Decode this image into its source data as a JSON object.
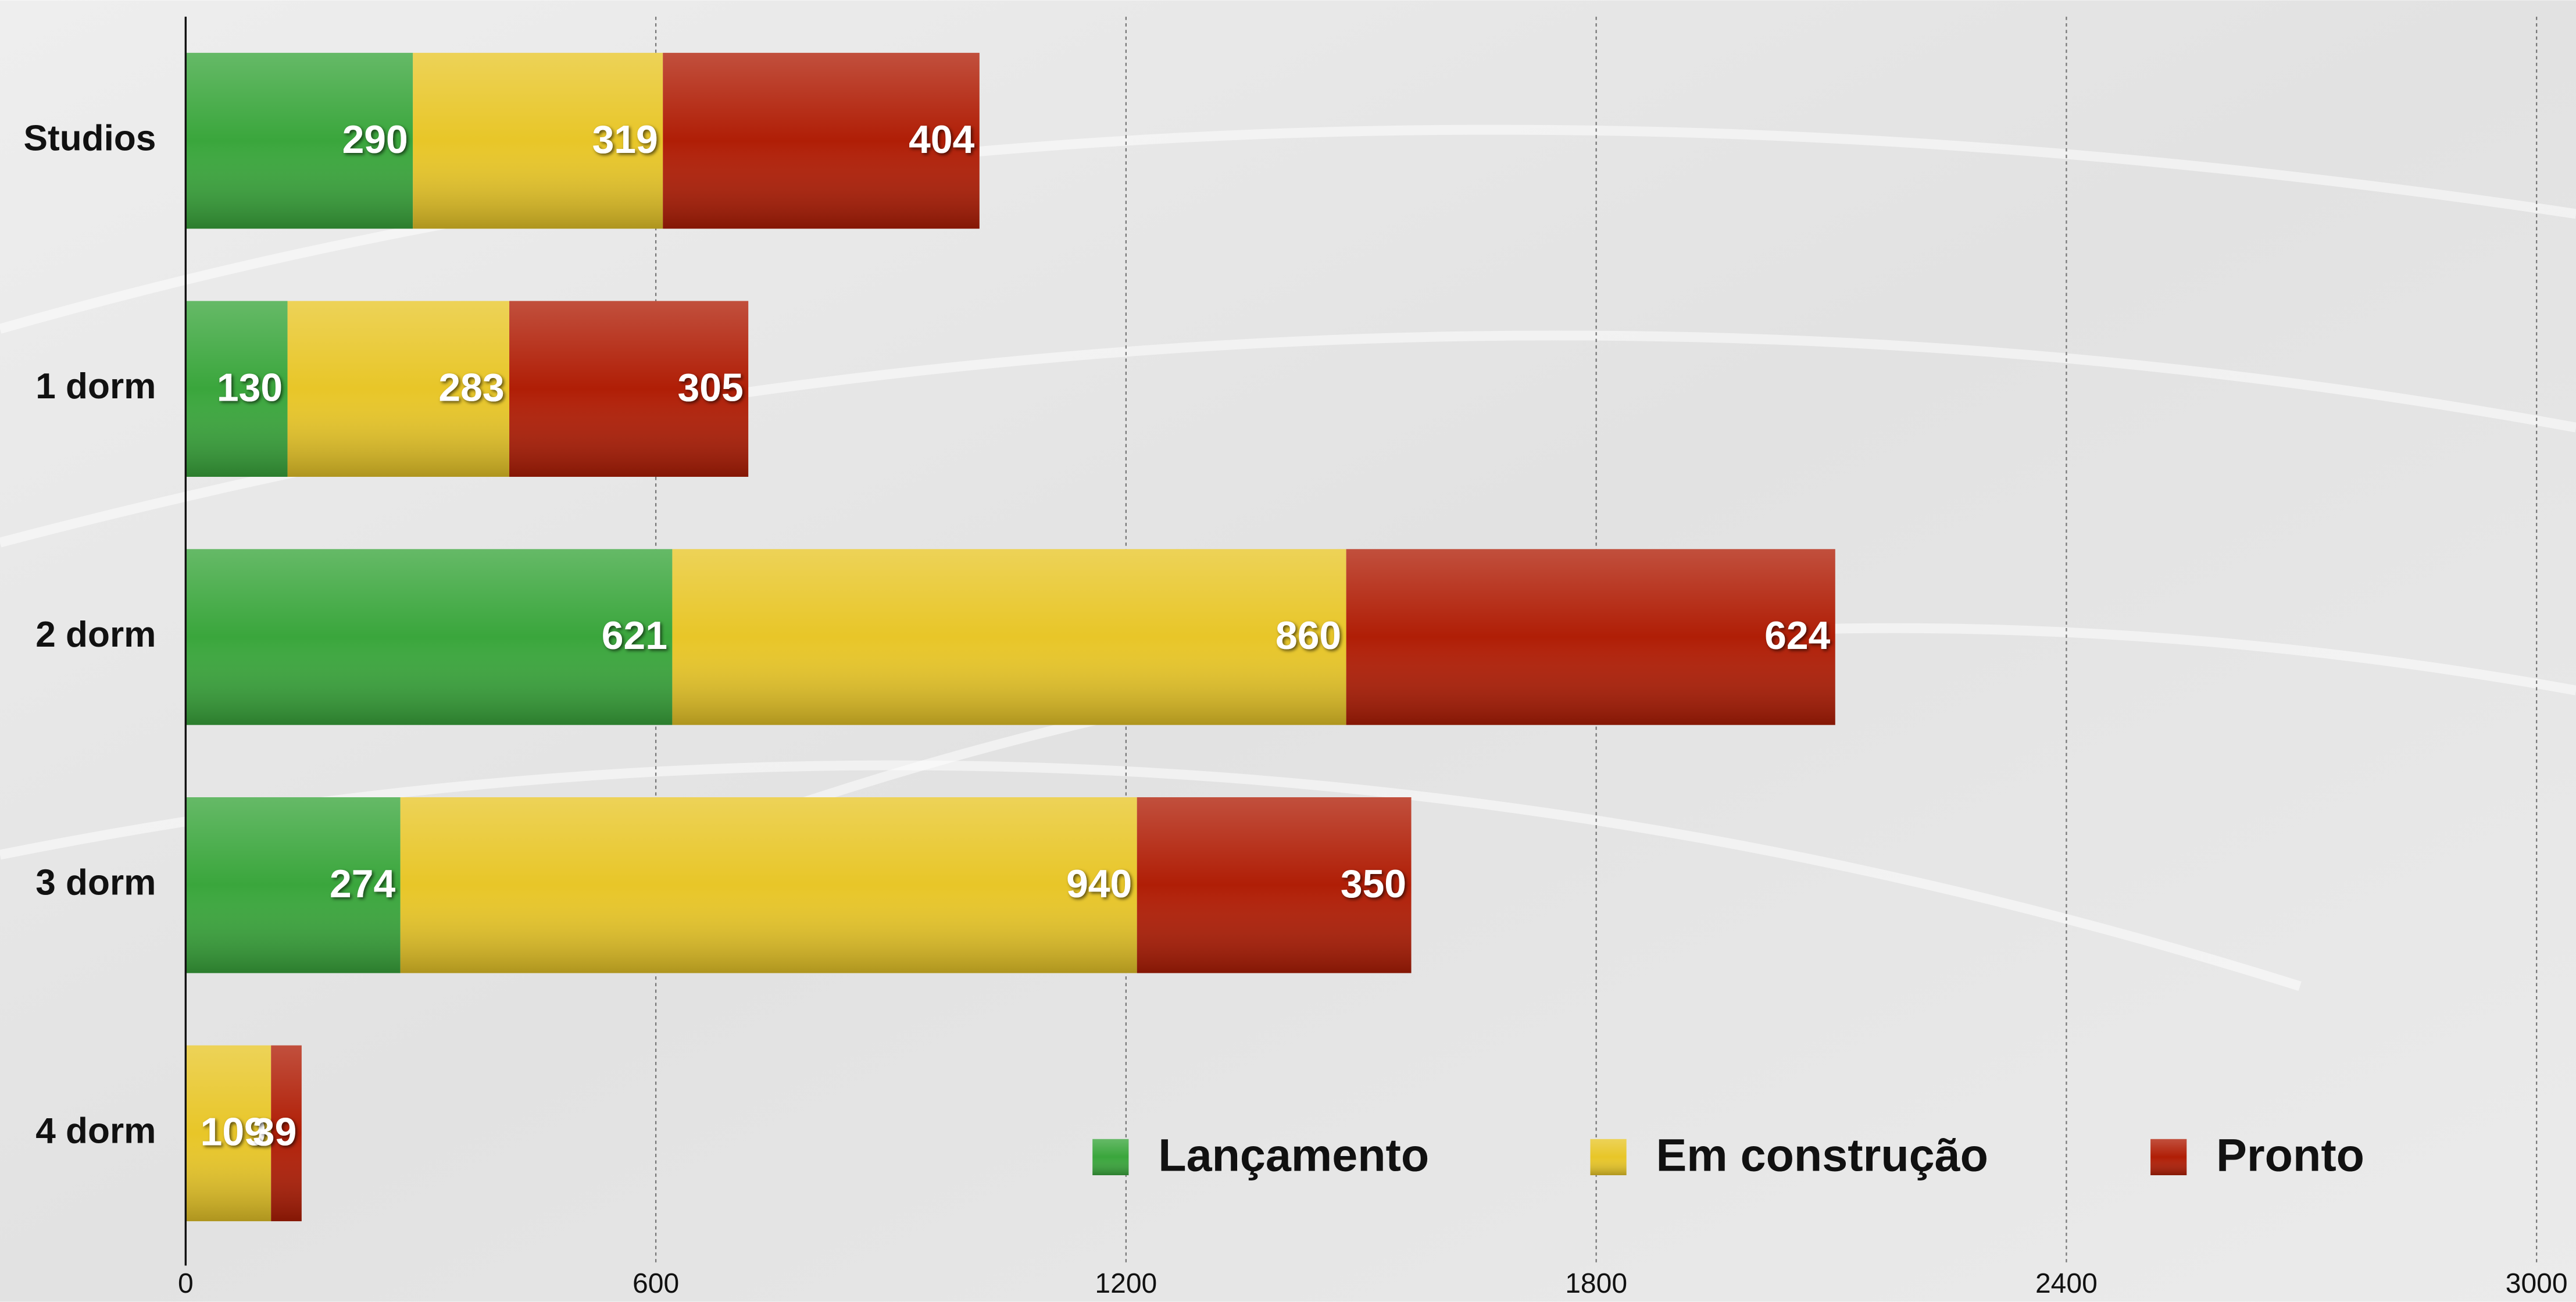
{
  "chart_data": {
    "type": "stacked_barh",
    "categories": [
      "Studios",
      "1 dorm",
      "2 dorm",
      "3 dorm",
      "4 dorm"
    ],
    "series": [
      {
        "name": "Lançamento",
        "color": "#3aa63c",
        "values": [
          290,
          130,
          621,
          274,
          null
        ]
      },
      {
        "name": "Em construção",
        "color": "#e8c628",
        "values": [
          319,
          283,
          860,
          940,
          109
        ]
      },
      {
        "name": "Pronto",
        "color": "#b01e06",
        "values": [
          404,
          305,
          624,
          350,
          39
        ]
      }
    ],
    "xlim": [
      0,
      3000
    ],
    "xticks": [
      0,
      600,
      1200,
      1800,
      2400,
      3000
    ],
    "grid": true,
    "legend": "lower right"
  }
}
